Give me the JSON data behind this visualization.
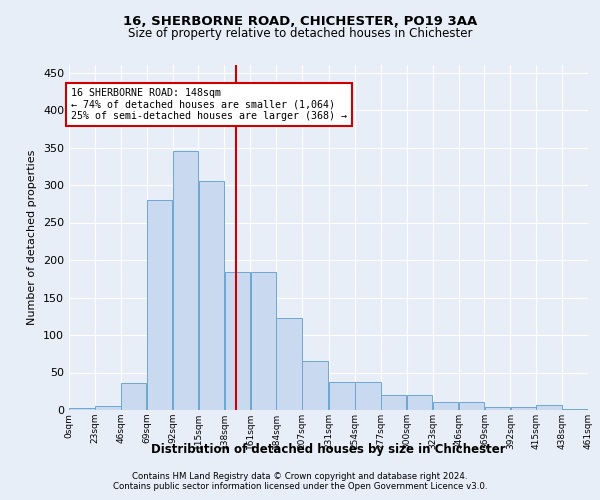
{
  "title1": "16, SHERBORNE ROAD, CHICHESTER, PO19 3AA",
  "title2": "Size of property relative to detached houses in Chichester",
  "xlabel": "Distribution of detached houses by size in Chichester",
  "ylabel": "Number of detached properties",
  "footer1": "Contains HM Land Registry data © Crown copyright and database right 2024.",
  "footer2": "Contains public sector information licensed under the Open Government Licence v3.0.",
  "annotation_line1": "16 SHERBORNE ROAD: 148sqm",
  "annotation_line2": "← 74% of detached houses are smaller (1,064)",
  "annotation_line3": "25% of semi-detached houses are larger (368) →",
  "property_size": 148,
  "bin_edges": [
    0,
    23,
    46,
    69,
    92,
    115,
    138,
    161,
    184,
    207,
    231,
    254,
    277,
    300,
    323,
    346,
    369,
    392,
    415,
    438,
    461
  ],
  "bar_heights": [
    3,
    6,
    36,
    280,
    346,
    305,
    184,
    184,
    123,
    65,
    37,
    37,
    20,
    20,
    11,
    11,
    4,
    4,
    7,
    2
  ],
  "bar_color": "#c8d9f0",
  "bar_edge_color": "#6ea6d2",
  "vline_color": "#cc0000",
  "vline_x": 148,
  "annotation_box_color": "#ffffff",
  "annotation_box_edge": "#cc0000",
  "ylim": [
    0,
    460
  ],
  "yticks": [
    0,
    50,
    100,
    150,
    200,
    250,
    300,
    350,
    400,
    450
  ],
  "background_color": "#e8eef8",
  "plot_bg_color": "#e8eef8",
  "grid_color": "#ffffff"
}
